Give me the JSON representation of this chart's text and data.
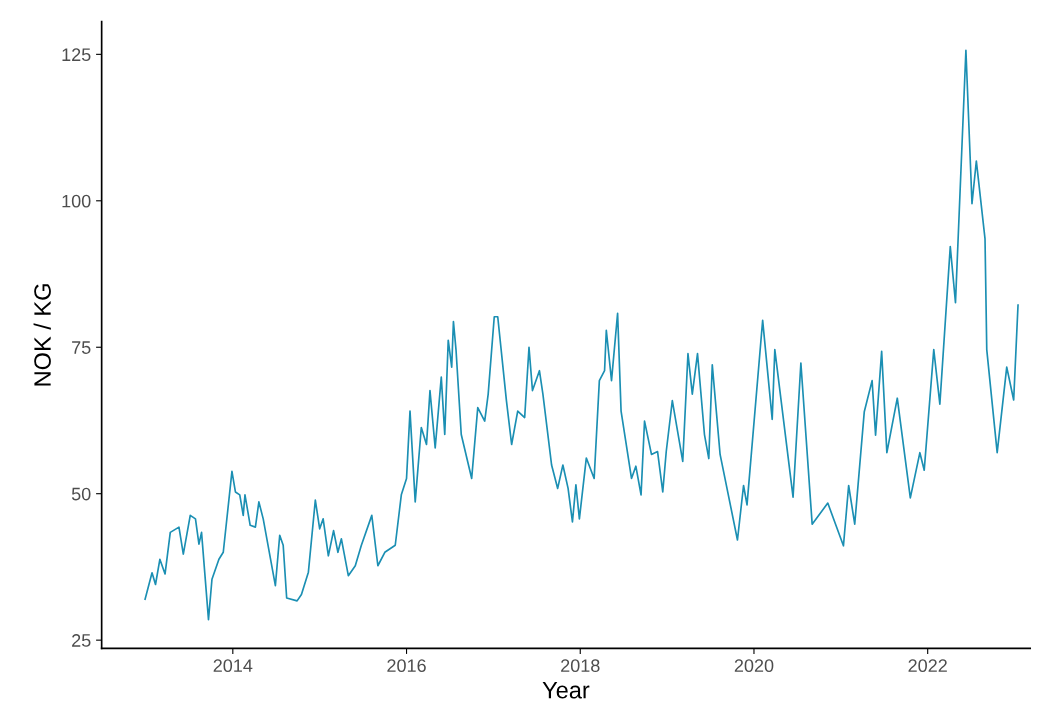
{
  "chart_data": {
    "type": "line",
    "xlabel": "Year",
    "ylabel": "NOK / KG",
    "xlim": [
      2012.49,
      2023.18
    ],
    "xticks": [
      2014,
      2016,
      2018,
      2020,
      2022
    ],
    "ylim": [
      23.6,
      130.6
    ],
    "yticks": [
      25,
      50,
      75,
      100,
      125
    ],
    "grid": false,
    "marker": "none",
    "line_style": "solid",
    "series": [
      {
        "color": "#1b8fb3",
        "x": [
          2012.99,
          2013.07,
          2013.11,
          2013.16,
          2013.22,
          2013.28,
          2013.38,
          2013.43,
          2013.51,
          2013.57,
          2013.61,
          2013.64,
          2013.72,
          2013.76,
          2013.84,
          2013.89,
          2013.99,
          2014.03,
          2014.08,
          2014.12,
          2014.14,
          2014.2,
          2014.26,
          2014.3,
          2014.35,
          2014.49,
          2014.54,
          2014.58,
          2014.62,
          2014.74,
          2014.79,
          2014.87,
          2014.95,
          2015.0,
          2015.04,
          2015.1,
          2015.16,
          2015.21,
          2015.25,
          2015.33,
          2015.41,
          2015.48,
          2015.6,
          2015.67,
          2015.75,
          2015.87,
          2015.94,
          2016.0,
          2016.04,
          2016.1,
          2016.17,
          2016.23,
          2016.27,
          2016.33,
          2016.4,
          2016.44,
          2016.48,
          2016.52,
          2016.54,
          2016.57,
          2016.63,
          2016.75,
          2016.82,
          2016.9,
          2016.94,
          2017.01,
          2017.05,
          2017.15,
          2017.21,
          2017.28,
          2017.36,
          2017.41,
          2017.45,
          2017.53,
          2017.57,
          2017.67,
          2017.74,
          2017.8,
          2017.86,
          2017.91,
          2017.95,
          2017.99,
          2018.07,
          2018.16,
          2018.22,
          2018.28,
          2018.3,
          2018.36,
          2018.43,
          2018.47,
          2018.59,
          2018.64,
          2018.7,
          2018.74,
          2018.82,
          2018.89,
          2018.95,
          2018.99,
          2019.06,
          2019.18,
          2019.24,
          2019.29,
          2019.35,
          2019.43,
          2019.48,
          2019.52,
          2019.61,
          2019.81,
          2019.88,
          2019.92,
          2020.1,
          2020.21,
          2020.24,
          2020.45,
          2020.54,
          2020.67,
          2020.85,
          2021.03,
          2021.09,
          2021.16,
          2021.27,
          2021.36,
          2021.4,
          2021.47,
          2021.53,
          2021.65,
          2021.8,
          2021.91,
          2021.96,
          2022.07,
          2022.14,
          2022.26,
          2022.32,
          2022.44,
          2022.51,
          2022.56,
          2022.66,
          2022.68,
          2022.8,
          2022.91,
          2022.99,
          2023.04
        ],
        "values": [
          32,
          36.5,
          34.5,
          38.8,
          36.3,
          43.4,
          44.3,
          39.7,
          46.3,
          45.7,
          41.4,
          43.4,
          28.5,
          35.4,
          38.8,
          40,
          53.8,
          50.3,
          49.8,
          46.3,
          49.8,
          44.6,
          44.3,
          48.6,
          45.7,
          34.3,
          42.9,
          41.2,
          32.2,
          31.7,
          32.8,
          36.6,
          48.9,
          44,
          45.7,
          39.4,
          43.7,
          40,
          42.3,
          36,
          37.7,
          41.2,
          46.3,
          37.7,
          40,
          41.2,
          49.8,
          52.6,
          64.1,
          48.6,
          61.3,
          58.4,
          67.6,
          57.8,
          69.9,
          60.1,
          76.2,
          71.6,
          79.4,
          74.5,
          60.1,
          52.6,
          64.7,
          62.4,
          67,
          80.2,
          80.2,
          65.9,
          58.4,
          64.1,
          63,
          75,
          67.6,
          71,
          67,
          54.9,
          50.9,
          54.9,
          50.9,
          45.2,
          51.5,
          45.7,
          56.1,
          52.6,
          69.3,
          71,
          77.9,
          69.3,
          80.8,
          64.1,
          52.6,
          54.7,
          49.8,
          62.4,
          56.7,
          57.2,
          50.3,
          57.2,
          65.9,
          55.5,
          73.9,
          67,
          73.9,
          60.1,
          56,
          72,
          56.7,
          42.1,
          51.4,
          48.1,
          79.6,
          62.7,
          74.6,
          49.4,
          72.3,
          44.8,
          48.4,
          41.1,
          51.4,
          44.8,
          64,
          69.3,
          60,
          74.3,
          57,
          66.3,
          49.3,
          57,
          54,
          74.6,
          65.3,
          92.2,
          82.6,
          125.7,
          99.5,
          106.8,
          93.5,
          74.6,
          57,
          71.6,
          66,
          82.2
        ]
      }
    ]
  }
}
